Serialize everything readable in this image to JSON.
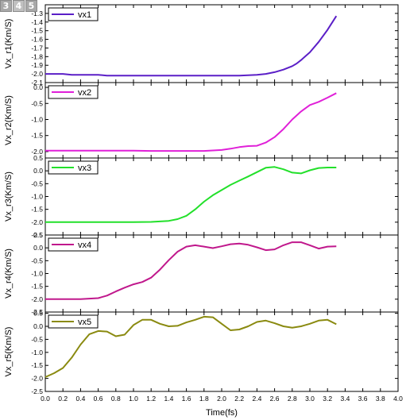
{
  "tabs": [
    {
      "label": "3"
    },
    {
      "label": "4"
    },
    {
      "label": "5"
    }
  ],
  "chart_data": {
    "type": "line",
    "xlabel": "Time(fs)",
    "xlim": [
      0.0,
      4.0
    ],
    "xticks": [
      "0.0",
      "0.2",
      "0.4",
      "0.6",
      "0.8",
      "1.0",
      "1.2",
      "1.4",
      "1.6",
      "1.8",
      "2.0",
      "2.2",
      "2.4",
      "2.6",
      "2.8",
      "3.0",
      "3.2",
      "3.4",
      "3.6",
      "3.8",
      "4.0"
    ],
    "panels": [
      {
        "ylabel": "Vx_r1(Km/S)",
        "ylim": [
          -2.1,
          -1.2
        ],
        "yticks": [
          "-1.3",
          "-1.4",
          "-1.5",
          "-1.6",
          "-1.7",
          "-1.8",
          "-1.9",
          "-2.0",
          "-2.1"
        ],
        "series": [
          {
            "name": "vx1",
            "color": "#5b1fc7",
            "x": [
              0.0,
              0.1,
              0.2,
              0.3,
              0.4,
              0.5,
              0.6,
              0.7,
              0.8,
              1.0,
              1.2,
              1.4,
              1.6,
              1.8,
              2.0,
              2.2,
              2.4,
              2.5,
              2.6,
              2.7,
              2.8,
              2.85,
              2.9,
              3.0,
              3.1,
              3.2,
              3.3
            ],
            "y": [
              -2.0,
              -2.0,
              -2.0,
              -2.01,
              -2.01,
              -2.01,
              -2.01,
              -2.02,
              -2.02,
              -2.02,
              -2.02,
              -2.02,
              -2.02,
              -2.02,
              -2.02,
              -2.02,
              -2.01,
              -2.0,
              -1.98,
              -1.95,
              -1.91,
              -1.88,
              -1.84,
              -1.75,
              -1.63,
              -1.49,
              -1.33
            ]
          }
        ]
      },
      {
        "ylabel": "Vx_r2(Km/S)",
        "ylim": [
          -2.2,
          0.15
        ],
        "yticks": [
          "0.0",
          "-0.5",
          "-1.0",
          "-1.5",
          "-2.0"
        ],
        "series": [
          {
            "name": "vx2",
            "color": "#e020d8",
            "x": [
              0.0,
              0.2,
              0.4,
              0.6,
              0.8,
              1.0,
              1.2,
              1.4,
              1.6,
              1.8,
              2.0,
              2.1,
              2.2,
              2.3,
              2.4,
              2.5,
              2.6,
              2.7,
              2.8,
              2.9,
              3.0,
              3.1,
              3.2,
              3.3
            ],
            "y": [
              -1.97,
              -1.97,
              -1.97,
              -1.97,
              -1.97,
              -1.97,
              -1.98,
              -1.98,
              -1.98,
              -1.98,
              -1.95,
              -1.91,
              -1.86,
              -1.83,
              -1.82,
              -1.72,
              -1.55,
              -1.3,
              -1.0,
              -0.75,
              -0.55,
              -0.45,
              -0.32,
              -0.18
            ]
          }
        ]
      },
      {
        "ylabel": "Vx_r3(Km/S)",
        "ylim": [
          -2.5,
          0.5
        ],
        "yticks": [
          "0.5",
          "0.0",
          "-0.5",
          "-1.0",
          "-1.5",
          "-2.0",
          "-2.5"
        ],
        "series": [
          {
            "name": "vx3",
            "color": "#22e02a",
            "x": [
              0.0,
              0.2,
              0.4,
              0.6,
              0.8,
              1.0,
              1.2,
              1.4,
              1.5,
              1.6,
              1.7,
              1.8,
              1.9,
              2.0,
              2.1,
              2.2,
              2.3,
              2.4,
              2.5,
              2.6,
              2.7,
              2.8,
              2.9,
              3.0,
              3.1,
              3.2,
              3.3
            ],
            "y": [
              -2.0,
              -2.0,
              -2.0,
              -2.0,
              -2.0,
              -2.0,
              -1.99,
              -1.95,
              -1.88,
              -1.75,
              -1.5,
              -1.2,
              -0.95,
              -0.75,
              -0.55,
              -0.38,
              -0.22,
              -0.05,
              0.12,
              0.15,
              0.06,
              -0.07,
              -0.1,
              0.02,
              0.11,
              0.13,
              0.13
            ]
          }
        ]
      },
      {
        "ylabel": "Vx_r4(Km/S)",
        "ylim": [
          -2.5,
          0.5
        ],
        "yticks": [
          "0.5",
          "0.0",
          "-0.5",
          "-1.0",
          "-1.5",
          "-2.0",
          "-2.5"
        ],
        "series": [
          {
            "name": "vx4",
            "color": "#c0188c",
            "x": [
              0.0,
              0.2,
              0.4,
              0.6,
              0.7,
              0.8,
              0.9,
              1.0,
              1.1,
              1.2,
              1.3,
              1.4,
              1.5,
              1.6,
              1.7,
              1.8,
              1.9,
              2.0,
              2.1,
              2.2,
              2.3,
              2.4,
              2.5,
              2.6,
              2.7,
              2.8,
              2.9,
              3.0,
              3.1,
              3.2,
              3.3
            ],
            "y": [
              -2.0,
              -2.0,
              -2.0,
              -1.96,
              -1.86,
              -1.7,
              -1.55,
              -1.42,
              -1.33,
              -1.16,
              -0.85,
              -0.48,
              -0.15,
              0.05,
              0.1,
              0.05,
              -0.01,
              0.06,
              0.14,
              0.17,
              0.12,
              0.02,
              -0.09,
              -0.06,
              0.1,
              0.22,
              0.22,
              0.1,
              -0.03,
              0.05,
              0.06
            ]
          }
        ]
      },
      {
        "ylabel": "Vx_r5(Km/S)",
        "ylim": [
          -2.5,
          0.55
        ],
        "yticks": [
          "0.5",
          "0.0",
          "-0.5",
          "-1.0",
          "-1.5",
          "-2.0",
          "-2.5"
        ],
        "series": [
          {
            "name": "vx5",
            "color": "#8a8a10",
            "x": [
              0.0,
              0.1,
              0.2,
              0.3,
              0.4,
              0.5,
              0.6,
              0.7,
              0.8,
              0.9,
              1.0,
              1.1,
              1.2,
              1.3,
              1.4,
              1.5,
              1.6,
              1.7,
              1.8,
              1.9,
              2.0,
              2.1,
              2.2,
              2.3,
              2.4,
              2.5,
              2.6,
              2.7,
              2.8,
              2.9,
              3.0,
              3.1,
              3.2,
              3.3
            ],
            "y": [
              -1.95,
              -1.8,
              -1.6,
              -1.2,
              -0.7,
              -0.3,
              -0.18,
              -0.2,
              -0.38,
              -0.32,
              0.05,
              0.25,
              0.25,
              0.1,
              0.0,
              0.02,
              0.15,
              0.25,
              0.37,
              0.35,
              0.1,
              -0.15,
              -0.12,
              0.0,
              0.17,
              0.22,
              0.12,
              0.0,
              -0.05,
              0.0,
              0.1,
              0.22,
              0.25,
              0.08
            ]
          }
        ]
      }
    ]
  }
}
